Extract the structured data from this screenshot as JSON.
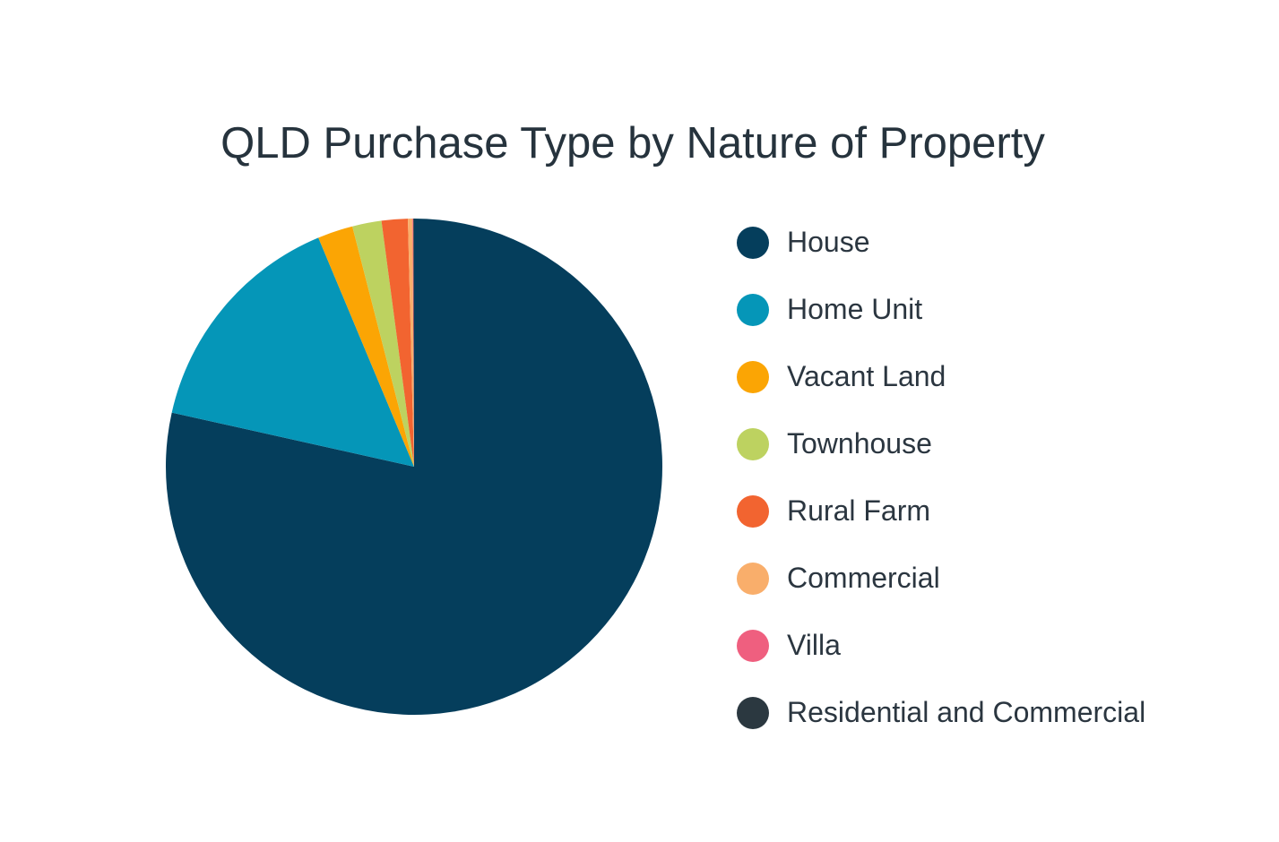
{
  "chart_data": {
    "type": "pie",
    "title": "QLD Purchase Type by Nature of Property",
    "legend_position": "right",
    "slices": [
      {
        "label": "House",
        "value": 78.5,
        "color": "#053e5c"
      },
      {
        "label": "Home Unit",
        "value": 15.2,
        "color": "#0596b8"
      },
      {
        "label": "Vacant Land",
        "value": 2.3,
        "color": "#fba504"
      },
      {
        "label": "Townhouse",
        "value": 1.9,
        "color": "#bdd260"
      },
      {
        "label": "Rural Farm",
        "value": 1.7,
        "color": "#f26430"
      },
      {
        "label": "Commercial",
        "value": 0.3,
        "color": "#f9ae6b"
      },
      {
        "label": "Villa",
        "value": 0.05,
        "color": "#ef5f7f"
      },
      {
        "label": "Residential and Commercial",
        "value": 0.05,
        "color": "#2b3840"
      }
    ]
  }
}
